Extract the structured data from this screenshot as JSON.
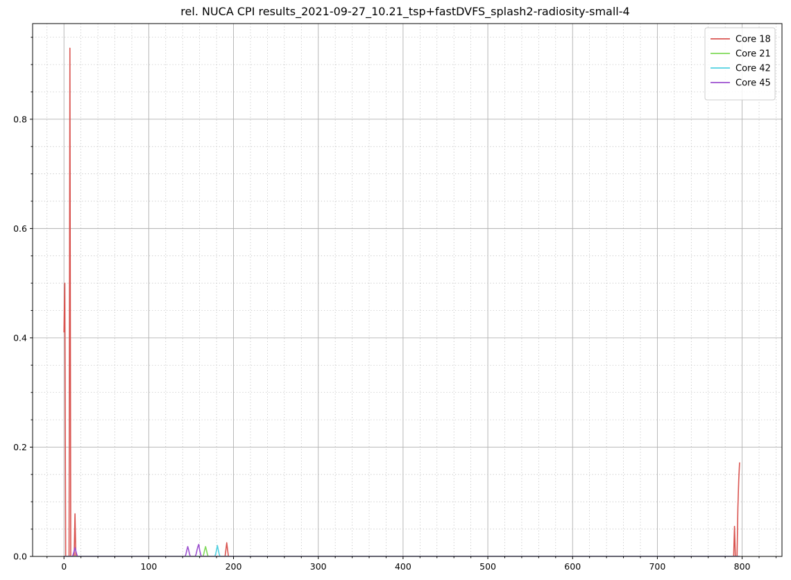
{
  "chart_data": {
    "type": "line",
    "title": "rel. NUCA CPI results_2021-09-27_10.21_tsp+fastDVFS_splash2-radiosity-small-4",
    "xlabel": "",
    "ylabel": "",
    "xlim": [
      -37,
      847
    ],
    "ylim": [
      0,
      0.975
    ],
    "xticks": [
      0,
      100,
      200,
      300,
      400,
      500,
      600,
      700,
      800
    ],
    "xtick_labels": [
      "0",
      "100",
      "200",
      "300",
      "400",
      "500",
      "600",
      "700",
      "800"
    ],
    "yticks": [
      0.0,
      0.2,
      0.4,
      0.6,
      0.8
    ],
    "ytick_labels": [
      "0.0",
      "0.2",
      "0.4",
      "0.6",
      "0.8"
    ],
    "x_minor_step": 20,
    "y_minor_step": 0.05,
    "grid": true,
    "minor_grid": true,
    "legend_position": "top-right",
    "series": [
      {
        "name": "Core 18",
        "color": "#d9534f",
        "x": [
          0,
          1,
          2,
          3,
          4,
          5,
          6,
          7,
          8,
          9,
          10,
          11,
          12,
          13,
          14,
          15,
          16,
          100,
          185,
          190,
          191,
          192,
          193,
          194,
          195,
          200,
          300,
          400,
          500,
          600,
          700,
          785,
          786,
          787,
          788,
          789,
          790,
          791,
          792,
          793,
          794,
          795,
          796,
          797
        ],
        "y": [
          0.41,
          0.5,
          0.0,
          0.0,
          0.0,
          0.0,
          0.0,
          0.93,
          0.0,
          0.0,
          0.0,
          0.0,
          0.0,
          0.078,
          0.0,
          0.0,
          0.0,
          0.0,
          0.0,
          0.0,
          0.012,
          0.025,
          0.012,
          0.0,
          0.0,
          0.0,
          0.0,
          0.0,
          0.0,
          0.0,
          0.0,
          0.0,
          0.0,
          0.0,
          0.0,
          0.0,
          0.0,
          0.055,
          0.0,
          0.0,
          0.0,
          0.09,
          0.14,
          0.172
        ]
      },
      {
        "name": "Core 21",
        "color": "#7ed957",
        "x": [
          0,
          100,
          160,
          163,
          164,
          165,
          166,
          167,
          168,
          169,
          170,
          173,
          300,
          500,
          700,
          797
        ],
        "y": [
          0.0,
          0.0,
          0.0,
          0.0,
          0.0,
          0.005,
          0.012,
          0.018,
          0.012,
          0.005,
          0.0,
          0.0,
          0.0,
          0.0,
          0.0,
          0.0
        ]
      },
      {
        "name": "Core 42",
        "color": "#4fd0e0",
        "x": [
          0,
          100,
          175,
          177,
          178,
          179,
          180,
          181,
          182,
          183,
          184,
          186,
          300,
          500,
          700,
          797
        ],
        "y": [
          0.0,
          0.0,
          0.0,
          0.0,
          0.0,
          0.005,
          0.012,
          0.02,
          0.012,
          0.005,
          0.0,
          0.0,
          0.0,
          0.0,
          0.0,
          0.0
        ]
      },
      {
        "name": "Core 45",
        "color": "#9b4fcf",
        "x": [
          0,
          10,
          11,
          12,
          13,
          14,
          15,
          16,
          20,
          140,
          142,
          143,
          144,
          145,
          146,
          147,
          148,
          149,
          150,
          154,
          155,
          156,
          157,
          158,
          159,
          160,
          161,
          162,
          163,
          300,
          500,
          700,
          797
        ],
        "y": [
          0.0,
          0.0,
          0.004,
          0.01,
          0.016,
          0.01,
          0.004,
          0.0,
          0.0,
          0.0,
          0.0,
          0.0,
          0.005,
          0.012,
          0.018,
          0.012,
          0.005,
          0.0,
          0.0,
          0.0,
          0.0,
          0.005,
          0.012,
          0.018,
          0.022,
          0.012,
          0.005,
          0.0,
          0.0,
          0.0,
          0.0,
          0.0,
          0.0
        ]
      }
    ]
  }
}
